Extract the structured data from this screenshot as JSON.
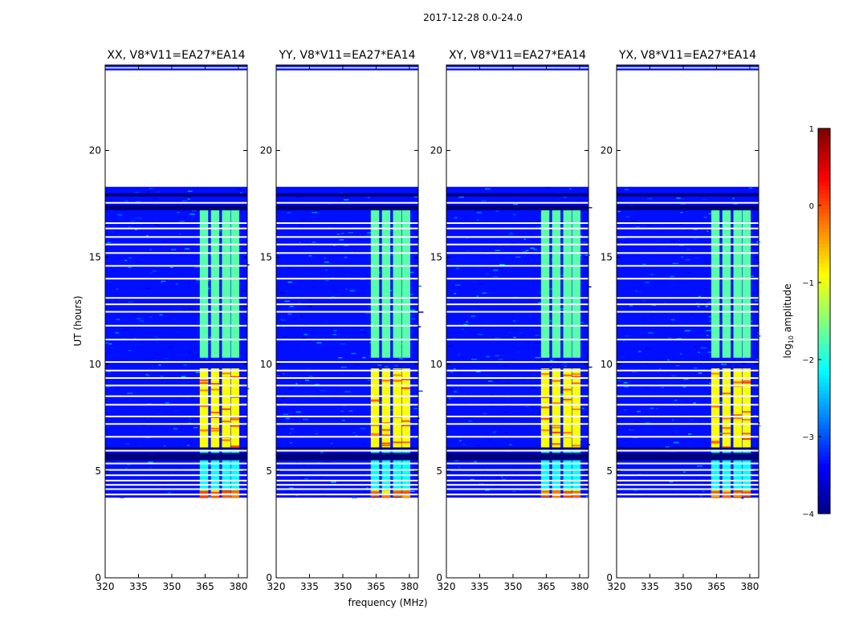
{
  "figure_title": "2017-12-28 0.0-24.0",
  "xlabel": "frequency (MHz)",
  "ylabel": "UT (hours)",
  "colorbar": {
    "label": "log10 amplitude",
    "ticks": [
      1,
      0,
      -1,
      -2,
      -3,
      -4
    ],
    "tick_labels": [
      "1",
      "0",
      "−1",
      "−2",
      "−3",
      "−4"
    ],
    "range": [
      -4,
      1
    ],
    "colormap": "jet"
  },
  "chart_data": {
    "type": "heatmap",
    "panels": [
      {
        "title": "XX, V8*V11=EA27*EA14",
        "pol": "XX"
      },
      {
        "title": "YY, V8*V11=EA27*EA14",
        "pol": "YY"
      },
      {
        "title": "XY, V8*V11=EA27*EA14",
        "pol": "XY"
      },
      {
        "title": "YX, V8*V11=EA27*EA14",
        "pol": "YX"
      }
    ],
    "xlim": [
      320,
      384
    ],
    "ylim": [
      0,
      24
    ],
    "xticks": [
      320,
      335,
      350,
      365,
      380
    ],
    "yticks": [
      0,
      5,
      10,
      15,
      20
    ],
    "data_time_ranges": [
      [
        3.75,
        18.3
      ],
      [
        23.75,
        24.0
      ]
    ],
    "signal_band_freq_mhz": [
      362,
      380
    ],
    "signal_channel_centers_mhz": [
      364.5,
      369.5,
      374.5,
      378.5
    ],
    "signal_levels_log10": [
      {
        "ut_range": [
          3.8,
          4.1
        ],
        "level": -0.8
      },
      {
        "ut_range": [
          4.1,
          6.0
        ],
        "level": -2.1
      },
      {
        "ut_range": [
          6.1,
          9.8
        ],
        "level": -0.9
      },
      {
        "ut_range": [
          10.3,
          17.2
        ],
        "level": -1.7
      }
    ],
    "background_level_log10": -3.3
  }
}
